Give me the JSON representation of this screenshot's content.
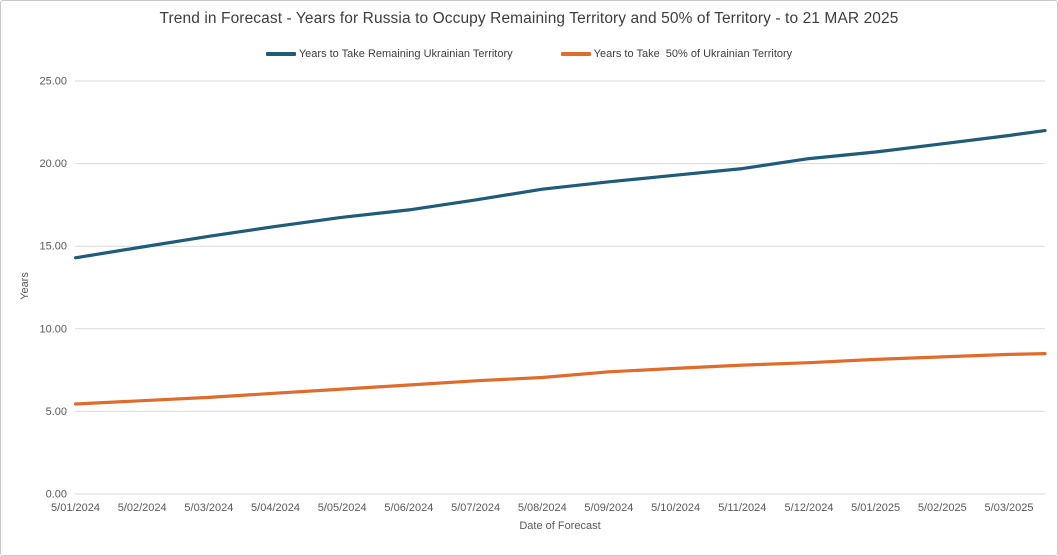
{
  "window": {
    "background": "#ffffff",
    "border_color": "#c9c9c9"
  },
  "chart_data": {
    "type": "line",
    "title": "Trend in Forecast - Years for Russia to Occupy Remaining Territory and 50% of Territory - to 21 MAR 2025",
    "xlabel": "Date of Forecast",
    "ylabel": "Years",
    "ylim": [
      0,
      25
    ],
    "y_ticks": [
      0,
      5,
      10,
      15,
      20,
      25
    ],
    "y_tick_labels": [
      "0.00",
      "5.00",
      "10.00",
      "15.00",
      "20.00",
      "25.00"
    ],
    "x_tick_labels": [
      "5/01/2024",
      "5/02/2024",
      "5/03/2024",
      "5/04/2024",
      "5/05/2024",
      "5/06/2024",
      "5/07/2024",
      "5/08/2024",
      "5/09/2024",
      "5/10/2024",
      "5/11/2024",
      "5/12/2024",
      "5/01/2025",
      "5/02/2025",
      "5/03/2025"
    ],
    "x_positions": [
      0,
      1,
      2,
      3,
      4,
      5,
      6,
      7,
      8,
      9,
      10,
      11,
      12,
      13,
      14,
      14.54
    ],
    "grid": "horizontal-only",
    "grid_color": "#d9d9d9",
    "axis_text_color": "#595959",
    "legend_position": "top-center",
    "series": [
      {
        "name": "Years to Take Remaining Ukrainian Territory",
        "color": "#1F5C78",
        "values": [
          14.3,
          14.95,
          15.6,
          16.2,
          16.75,
          17.2,
          17.8,
          18.45,
          18.9,
          19.3,
          19.7,
          20.3,
          20.7,
          21.2,
          21.7,
          22.0
        ]
      },
      {
        "name": "Years to Take  50% of Ukrainian Territory",
        "color": "#E06C2B",
        "values": [
          5.45,
          5.65,
          5.85,
          6.1,
          6.35,
          6.6,
          6.85,
          7.05,
          7.4,
          7.6,
          7.8,
          7.95,
          8.15,
          8.3,
          8.45,
          8.5
        ]
      }
    ]
  }
}
